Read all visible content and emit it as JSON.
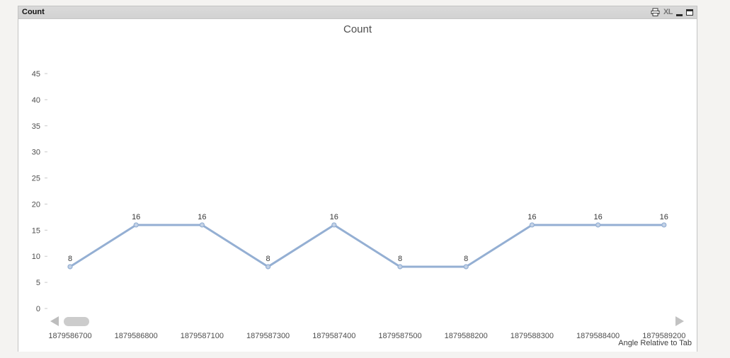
{
  "window": {
    "title": "Count",
    "caption": {
      "print_icon": "print-icon",
      "xl_label": "XL",
      "minimize_icon": "minimize-icon",
      "maximize_icon": "maximize-icon"
    }
  },
  "chart_data": {
    "type": "line",
    "title": "Count",
    "xlabel": "Angle Relative to Tab",
    "ylabel": "",
    "categories": [
      "1879586700",
      "1879586800",
      "1879587100",
      "1879587300",
      "1879587400",
      "1879587500",
      "1879588200",
      "1879588300",
      "1879588400",
      "1879589200"
    ],
    "values": [
      8,
      16,
      16,
      8,
      16,
      8,
      8,
      16,
      16,
      16
    ],
    "point_labels": [
      "8",
      "16",
      "16",
      "8",
      "16",
      "8",
      "8",
      "16",
      "16",
      "16"
    ],
    "ylim": [
      0,
      45
    ],
    "yticks": [
      0,
      5,
      10,
      15,
      20,
      25,
      30,
      35,
      40,
      45
    ],
    "grid": false,
    "legend": "none",
    "line_color": "#94afd3",
    "marker_fill": "#c3d2e6",
    "tick_color": "#c9c9c9",
    "label_color": "#4e4e4e"
  }
}
